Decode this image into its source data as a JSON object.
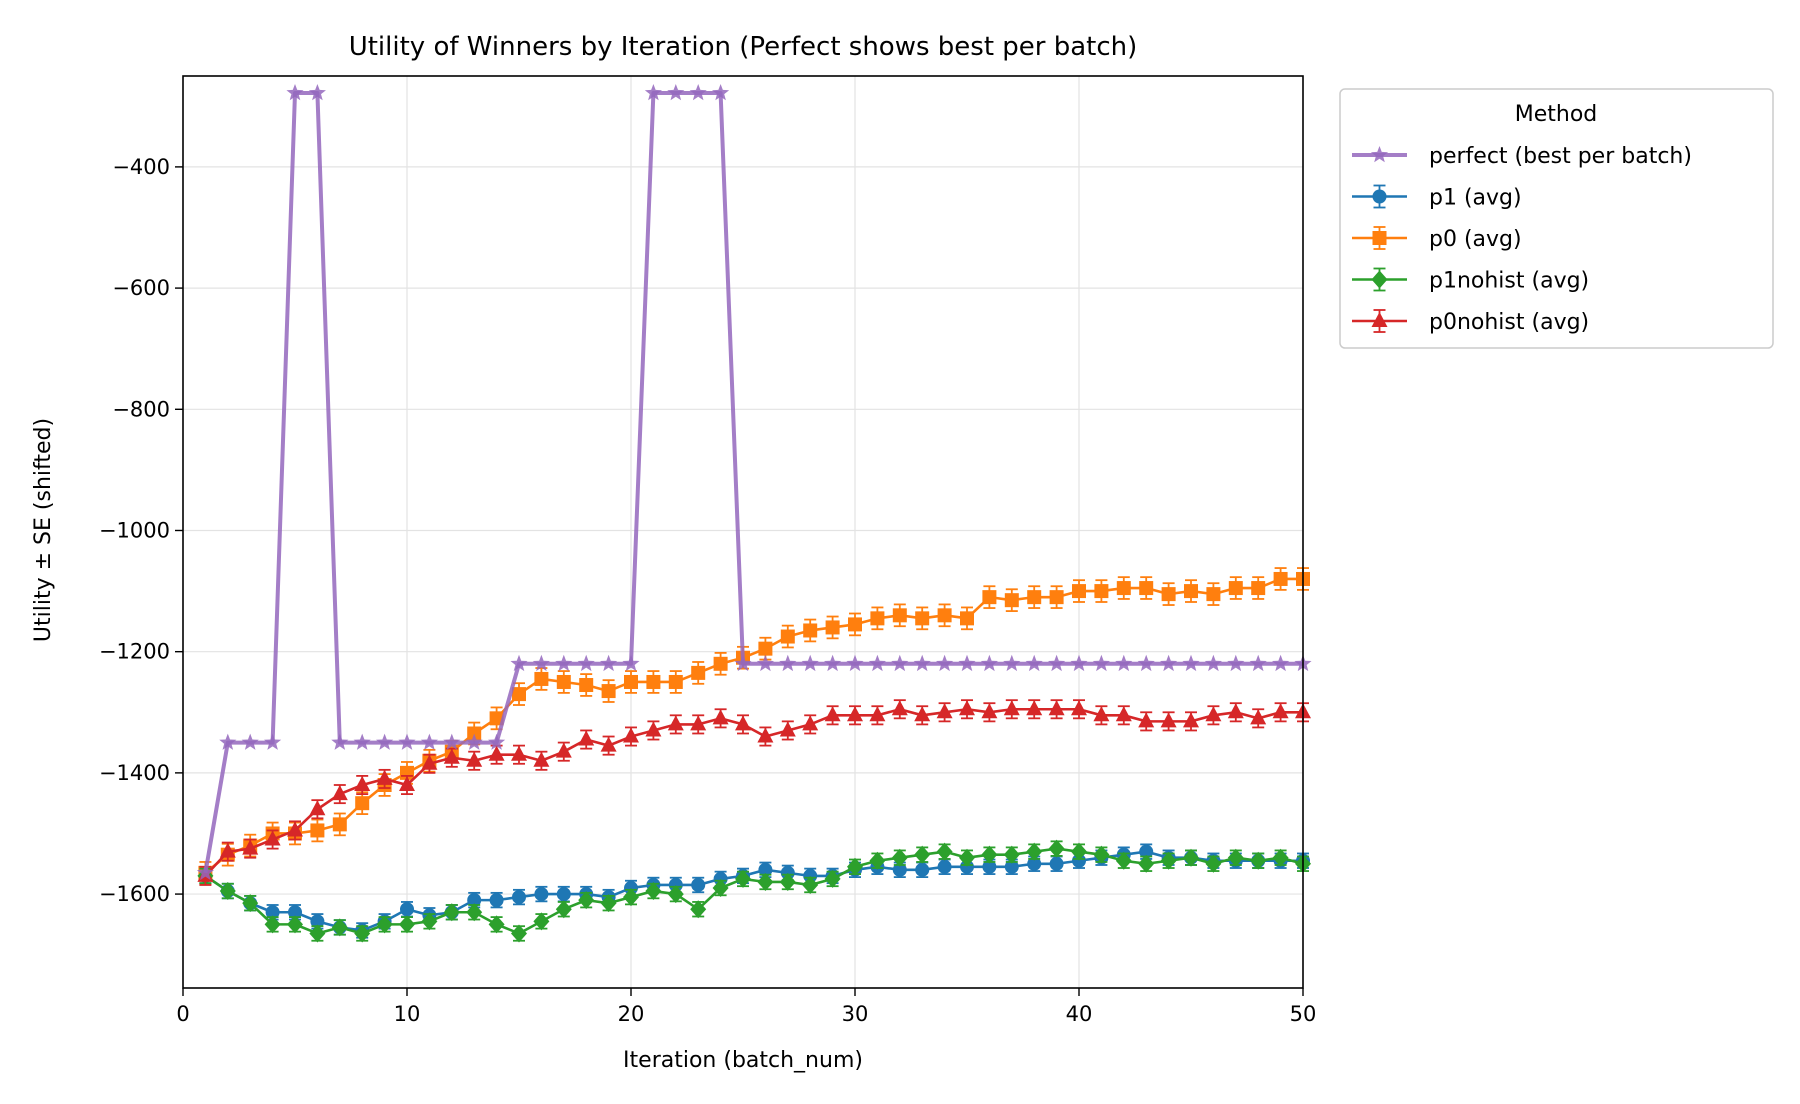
{
  "chart_data": {
    "type": "line",
    "title": "Utility of Winners by Iteration (Perfect shows best per batch)",
    "xlabel": "Iteration (batch_num)",
    "ylabel": "Utility ± SE (shifted)",
    "xlim": [
      0,
      50
    ],
    "ylim": [
      -1755,
      -250
    ],
    "xticks": [
      0,
      10,
      20,
      30,
      40,
      50
    ],
    "yticks": [
      -1600,
      -1400,
      -1200,
      -1000,
      -800,
      -600,
      -400
    ],
    "grid": true,
    "legend": {
      "title": "Method",
      "placement": "outside-top-right"
    },
    "x": [
      1,
      2,
      3,
      4,
      5,
      6,
      7,
      8,
      9,
      10,
      11,
      12,
      13,
      14,
      15,
      16,
      17,
      18,
      19,
      20,
      21,
      22,
      23,
      24,
      25,
      26,
      27,
      28,
      29,
      30,
      31,
      32,
      33,
      34,
      35,
      36,
      37,
      38,
      39,
      40,
      41,
      42,
      43,
      44,
      45,
      46,
      47,
      48,
      49,
      50
    ],
    "series": [
      {
        "name": "perfect (best per batch)",
        "color": "#9467bd",
        "marker": "star",
        "errorbars": false,
        "values": [
          -1565,
          -1350,
          -1350,
          -1350,
          -278,
          -278,
          -1350,
          -1350,
          -1350,
          -1350,
          -1350,
          -1350,
          -1350,
          -1350,
          -1220,
          -1220,
          -1220,
          -1220,
          -1220,
          -1220,
          -278,
          -278,
          -278,
          -278,
          -1220,
          -1220,
          -1220,
          -1220,
          -1220,
          -1220,
          -1220,
          -1220,
          -1220,
          -1220,
          -1220,
          -1220,
          -1220,
          -1220,
          -1220,
          -1220,
          -1220,
          -1220,
          -1220,
          -1220,
          -1220,
          -1220,
          -1220,
          -1220,
          -1220,
          -1220
        ]
      },
      {
        "name": "p1 (avg)",
        "color": "#1f77b4",
        "marker": "circle",
        "errorbars": true,
        "values": [
          -1570,
          -1595,
          -1615,
          -1630,
          -1630,
          -1645,
          -1655,
          -1660,
          -1645,
          -1625,
          -1635,
          -1630,
          -1610,
          -1610,
          -1605,
          -1600,
          -1600,
          -1600,
          -1605,
          -1590,
          -1585,
          -1585,
          -1585,
          -1575,
          -1570,
          -1560,
          -1565,
          -1570,
          -1570,
          -1560,
          -1555,
          -1560,
          -1560,
          -1555,
          -1555,
          -1555,
          -1555,
          -1550,
          -1550,
          -1545,
          -1540,
          -1535,
          -1530,
          -1540,
          -1540,
          -1545,
          -1545,
          -1545,
          -1545,
          -1545
        ],
        "se": [
          12,
          12,
          12,
          12,
          12,
          12,
          12,
          12,
          12,
          12,
          12,
          12,
          12,
          12,
          12,
          12,
          12,
          12,
          12,
          12,
          12,
          12,
          12,
          12,
          12,
          12,
          12,
          12,
          12,
          12,
          12,
          12,
          12,
          12,
          12,
          12,
          12,
          12,
          12,
          12,
          12,
          12,
          12,
          12,
          12,
          12,
          12,
          12,
          12,
          12
        ]
      },
      {
        "name": "p0 (avg)",
        "color": "#ff7f0e",
        "marker": "square",
        "errorbars": true,
        "values": [
          -1565,
          -1535,
          -1520,
          -1500,
          -1500,
          -1495,
          -1485,
          -1450,
          -1420,
          -1400,
          -1380,
          -1365,
          -1335,
          -1310,
          -1270,
          -1245,
          -1250,
          -1255,
          -1265,
          -1250,
          -1250,
          -1250,
          -1235,
          -1220,
          -1210,
          -1195,
          -1175,
          -1165,
          -1160,
          -1155,
          -1145,
          -1140,
          -1145,
          -1140,
          -1145,
          -1110,
          -1115,
          -1110,
          -1110,
          -1100,
          -1100,
          -1095,
          -1095,
          -1105,
          -1100,
          -1105,
          -1095,
          -1095,
          -1080,
          -1080
        ],
        "se": [
          18,
          18,
          18,
          18,
          18,
          18,
          18,
          18,
          18,
          18,
          18,
          18,
          18,
          18,
          18,
          18,
          18,
          18,
          18,
          18,
          18,
          18,
          18,
          18,
          18,
          18,
          18,
          18,
          18,
          18,
          18,
          18,
          18,
          18,
          18,
          18,
          18,
          18,
          18,
          18,
          18,
          18,
          18,
          18,
          18,
          18,
          18,
          18,
          18,
          18
        ]
      },
      {
        "name": "p1nohist (avg)",
        "color": "#2ca02c",
        "marker": "diamond",
        "errorbars": true,
        "values": [
          -1570,
          -1595,
          -1615,
          -1650,
          -1650,
          -1665,
          -1655,
          -1665,
          -1650,
          -1650,
          -1645,
          -1630,
          -1630,
          -1650,
          -1665,
          -1645,
          -1625,
          -1610,
          -1615,
          -1605,
          -1595,
          -1600,
          -1625,
          -1590,
          -1575,
          -1580,
          -1580,
          -1585,
          -1575,
          -1555,
          -1545,
          -1540,
          -1535,
          -1530,
          -1540,
          -1535,
          -1535,
          -1530,
          -1525,
          -1530,
          -1535,
          -1545,
          -1550,
          -1545,
          -1540,
          -1550,
          -1540,
          -1545,
          -1540,
          -1550
        ],
        "se": [
          12,
          12,
          12,
          12,
          12,
          12,
          12,
          12,
          12,
          12,
          12,
          12,
          12,
          12,
          12,
          12,
          12,
          12,
          12,
          12,
          12,
          12,
          12,
          12,
          12,
          12,
          12,
          12,
          12,
          12,
          12,
          12,
          12,
          12,
          12,
          12,
          12,
          12,
          12,
          12,
          12,
          12,
          12,
          12,
          12,
          12,
          12,
          12,
          12,
          12
        ]
      },
      {
        "name": "p0nohist (avg)",
        "color": "#d62728",
        "marker": "triangle",
        "errorbars": true,
        "values": [
          -1570,
          -1530,
          -1525,
          -1510,
          -1495,
          -1460,
          -1435,
          -1420,
          -1410,
          -1420,
          -1385,
          -1375,
          -1380,
          -1370,
          -1370,
          -1380,
          -1365,
          -1345,
          -1355,
          -1340,
          -1330,
          -1320,
          -1320,
          -1310,
          -1320,
          -1340,
          -1330,
          -1320,
          -1305,
          -1305,
          -1305,
          -1295,
          -1305,
          -1300,
          -1295,
          -1300,
          -1295,
          -1295,
          -1295,
          -1295,
          -1305,
          -1305,
          -1315,
          -1315,
          -1315,
          -1305,
          -1300,
          -1310,
          -1300,
          -1300
        ],
        "se": [
          15,
          15,
          15,
          15,
          15,
          15,
          15,
          15,
          15,
          15,
          15,
          15,
          15,
          15,
          15,
          15,
          15,
          15,
          15,
          15,
          15,
          15,
          15,
          15,
          15,
          15,
          15,
          15,
          15,
          15,
          15,
          15,
          15,
          15,
          15,
          15,
          15,
          15,
          15,
          15,
          15,
          15,
          15,
          15,
          15,
          15,
          15,
          15,
          15,
          15
        ]
      }
    ]
  }
}
